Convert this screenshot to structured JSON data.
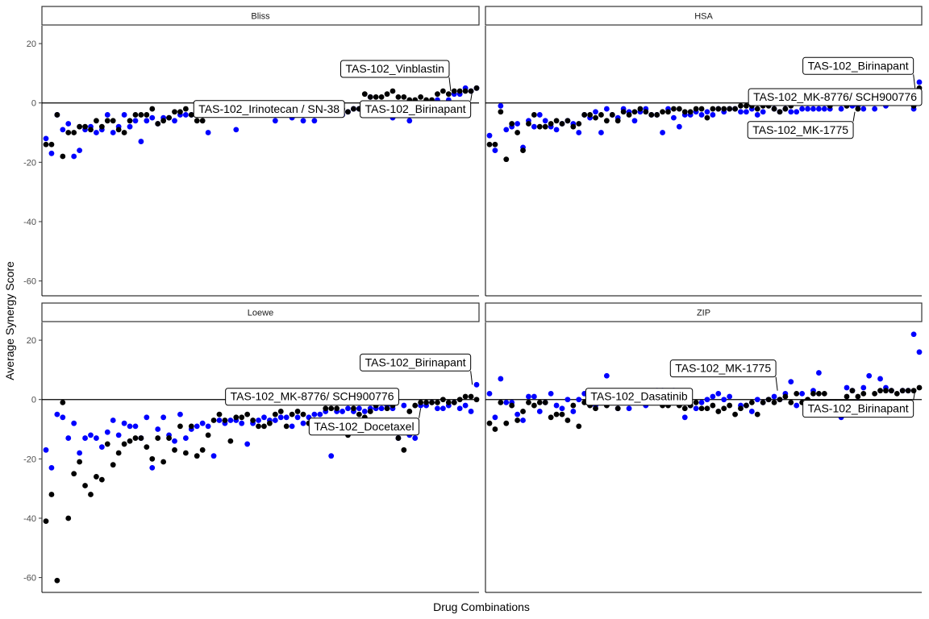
{
  "chart_data": {
    "type": "scatter",
    "xlabel": "Drug Combinations",
    "ylabel": "Average Synergy Score",
    "ylim": [
      -65,
      26
    ],
    "yticks": [
      20,
      0,
      -20,
      -40,
      -60
    ],
    "hline": 0,
    "grid": false,
    "colors": {
      "series_a": "#0000ff",
      "series_b": "#000000"
    },
    "panels": [
      {
        "name": "Bliss",
        "series_a": [
          -12,
          -17,
          -4,
          -9,
          -7,
          -18,
          -16,
          -9,
          -8,
          -10,
          -9,
          -4,
          -10,
          -8,
          -4,
          -8,
          -6,
          -13,
          -6,
          -5,
          -7,
          -5,
          -5,
          -6,
          -4,
          -4,
          -4,
          0,
          0,
          -10,
          -4,
          -4,
          -2,
          -2,
          -9,
          -3,
          -3,
          -3,
          -4,
          -3,
          -3,
          -6,
          -4,
          -3,
          -5,
          -4,
          -6,
          -2,
          -6,
          -2,
          -2,
          -4,
          -4,
          -4,
          -3,
          -2,
          -2,
          -2,
          2,
          -4,
          -4,
          -2,
          -5,
          -2,
          -2,
          -6,
          -2,
          -1,
          0,
          -1,
          1,
          -2,
          1,
          3,
          3,
          5,
          4,
          5
        ],
        "series_b": [
          -14,
          -14,
          -4,
          -18,
          -10,
          -10,
          -8,
          -8,
          -9,
          -6,
          -8,
          -6,
          -6,
          -9,
          -10,
          -6,
          -4,
          -4,
          -4,
          -2,
          -7,
          -6,
          -5,
          -3,
          -3,
          -2,
          -4,
          -6,
          -6,
          -2,
          -3,
          -3,
          -3,
          -2,
          -2,
          -3,
          -3,
          -3,
          -2,
          -2,
          -3,
          -2,
          -3,
          -2,
          -2,
          -2,
          -1,
          -3,
          -3,
          -2,
          -1,
          -2,
          -1,
          -2,
          -3,
          -2,
          -2,
          3,
          2,
          2,
          2,
          3,
          4,
          2,
          2,
          1,
          1,
          2,
          1,
          1,
          3,
          4,
          3,
          4,
          4,
          4,
          4,
          5
        ],
        "labels": [
          {
            "text": "TAS-102_Vinblastin",
            "x": 0.94,
            "y": 4
          },
          {
            "text": "TAS-102_Irinotecan / SN-38",
            "x": 0.52,
            "y": -3
          },
          {
            "text": "TAS-102_Birinapant",
            "x": 0.99,
            "y": 4
          }
        ]
      },
      {
        "name": "HSA",
        "series_a": [
          -11,
          -16,
          -1,
          -9,
          -8,
          -7,
          -15,
          -6,
          -8,
          -4,
          -6,
          -8,
          -9,
          -7,
          -6,
          -7,
          -10,
          -4,
          -5,
          -3,
          -10,
          -2,
          -4,
          -5,
          -2,
          -3,
          -6,
          -3,
          -2,
          -4,
          -4,
          -10,
          -2,
          -5,
          -8,
          -4,
          -4,
          -3,
          -4,
          -3,
          -4,
          -2,
          -3,
          -2,
          -2,
          -3,
          -3,
          -2,
          -4,
          -3,
          -8,
          -2,
          -3,
          -2,
          -3,
          -3,
          -2,
          -2,
          -2,
          -2,
          -2,
          -2,
          4,
          -2,
          -1,
          -1,
          -1,
          -2,
          1,
          -2,
          2,
          -1,
          1,
          2,
          2,
          1,
          -2,
          7
        ],
        "series_b": [
          -14,
          -14,
          -3,
          -19,
          -7,
          -10,
          -16,
          -7,
          -4,
          -8,
          -8,
          -7,
          -6,
          -7,
          -6,
          -8,
          -7,
          -4,
          -4,
          -5,
          -4,
          -6,
          -4,
          -6,
          -3,
          -4,
          -3,
          -2,
          -3,
          -4,
          -4,
          -3,
          -3,
          -2,
          -2,
          -3,
          -3,
          -2,
          -2,
          -5,
          -2,
          -2,
          -2,
          -2,
          -2,
          -1,
          -1,
          -1,
          -2,
          -1,
          -1,
          -2,
          -3,
          -2,
          -1,
          1,
          1,
          1,
          1,
          2,
          1,
          -1,
          2,
          1,
          -1,
          0,
          -2,
          1,
          2,
          0,
          2,
          1,
          1,
          1,
          0,
          2,
          -1,
          5
        ],
        "labels": [
          {
            "text": "TAS-102_Birinapant",
            "x": 0.99,
            "y": 5
          },
          {
            "text": "TAS-102_MK-8776/ SCH900776",
            "x": 0.82,
            "y": 1
          },
          {
            "text": "TAS-102_MK-1775",
            "x": 0.85,
            "y": -3
          }
        ]
      },
      {
        "name": "Loewe",
        "series_a": [
          -17,
          -23,
          -5,
          -6,
          -13,
          -8,
          -18,
          -13,
          -12,
          -13,
          -16,
          -11,
          -7,
          -12,
          -8,
          -9,
          -9,
          -13,
          -6,
          -23,
          -10,
          -6,
          -12,
          -14,
          -5,
          -13,
          -10,
          -9,
          -8,
          -9,
          -19,
          -7,
          -8,
          -7,
          -7,
          -8,
          -15,
          -8,
          -7,
          -6,
          -7,
          -7,
          -6,
          -6,
          -9,
          -6,
          -8,
          -6,
          -5,
          -5,
          -4,
          -19,
          -4,
          -4,
          -3,
          -4,
          -3,
          -4,
          -3,
          -3,
          -3,
          -2,
          -3,
          -13,
          -2,
          -12,
          -13,
          -2,
          -2,
          -1,
          -3,
          -3,
          -2,
          -1,
          -3,
          -2,
          -4,
          5
        ],
        "series_b": [
          -41,
          -32,
          -61,
          -1,
          -40,
          -25,
          -21,
          -29,
          -32,
          -26,
          -27,
          -15,
          -22,
          -18,
          -15,
          -14,
          -13,
          -13,
          -16,
          -20,
          -13,
          -21,
          -13,
          -17,
          -9,
          -18,
          -9,
          -19,
          -17,
          -12,
          -7,
          -5,
          -7,
          -14,
          -6,
          -6,
          -5,
          -7,
          -9,
          -9,
          -8,
          -5,
          -4,
          -9,
          -5,
          -4,
          -5,
          -8,
          -7,
          -8,
          -3,
          -3,
          -3,
          -10,
          -12,
          -3,
          -5,
          -6,
          -4,
          -2,
          -1,
          -3,
          -2,
          -13,
          -17,
          -4,
          -2,
          -1,
          -1,
          -1,
          -1,
          0,
          -1,
          -1,
          0,
          1,
          1,
          0
        ],
        "labels": [
          {
            "text": "TAS-102_Birinapant",
            "x": 0.99,
            "y": 5
          },
          {
            "text": "TAS-102_MK-8776/ SCH900776",
            "x": 0.62,
            "y": 0
          },
          {
            "text": "TAS-102_Docetaxel",
            "x": 0.87,
            "y": -3
          }
        ]
      },
      {
        "name": "ZIP",
        "series_a": [
          2,
          -6,
          7,
          -1,
          -1,
          -5,
          -7,
          1,
          1,
          -4,
          -1,
          2,
          -2,
          -3,
          0,
          -4,
          0,
          2,
          1,
          -2,
          2,
          8,
          -1,
          -3,
          2,
          -3,
          0,
          2,
          -2,
          2,
          3,
          3,
          -1,
          3,
          0,
          -6,
          -2,
          -3,
          -1,
          0,
          1,
          2,
          0,
          1,
          9,
          -2,
          -2,
          -4,
          0,
          -1,
          0,
          1,
          0,
          2,
          6,
          -2,
          2,
          -1,
          3,
          9,
          -3,
          -1,
          -3,
          -6,
          4,
          3,
          -1,
          4,
          8,
          -2,
          7,
          4,
          3,
          -3,
          3,
          3,
          22,
          16
        ],
        "series_b": [
          -8,
          -10,
          -1,
          -8,
          -2,
          -7,
          -4,
          -1,
          -2,
          -1,
          -1,
          -6,
          -5,
          -5,
          -7,
          -2,
          -9,
          -1,
          -2,
          -3,
          -1,
          -2,
          -1,
          -3,
          0,
          0,
          0,
          1,
          -1,
          -1,
          -1,
          -2,
          -2,
          -1,
          -2,
          -3,
          -2,
          -1,
          -3,
          -3,
          -2,
          -4,
          -3,
          -2,
          -5,
          -3,
          -2,
          -1,
          -5,
          -1,
          0,
          -1,
          0,
          1,
          -1,
          2,
          -1,
          0,
          2,
          2,
          2,
          -5,
          -1,
          -4,
          1,
          3,
          1,
          2,
          -4,
          2,
          3,
          3,
          3,
          2,
          3,
          3,
          3,
          4
        ],
        "labels": [
          {
            "text": "TAS-102_MK-1775",
            "x": 0.67,
            "y": 3
          },
          {
            "text": "TAS-102_Dasatinib",
            "x": 0.35,
            "y": 0
          },
          {
            "text": "TAS-102_Birinapant",
            "x": 0.99,
            "y": 3
          }
        ]
      }
    ]
  }
}
